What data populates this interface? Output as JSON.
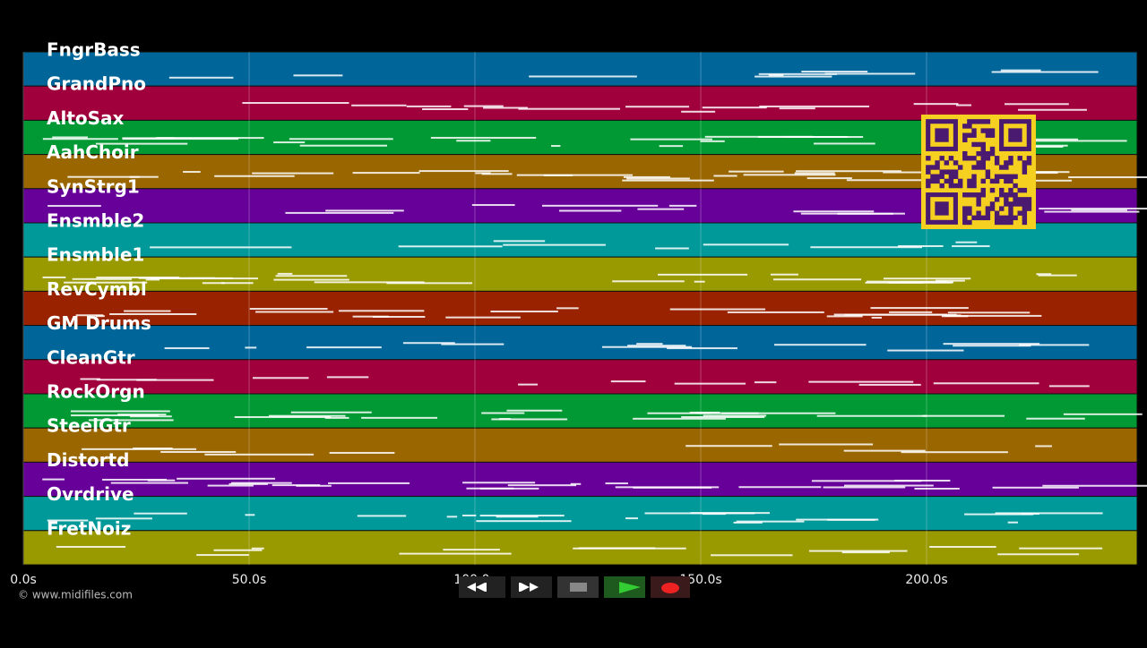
{
  "tracks": [
    {
      "name": "FngrBass",
      "color": "#006699"
    },
    {
      "name": "GrandPno",
      "color": "#a0003c"
    },
    {
      "name": "AltoSax",
      "color": "#009933"
    },
    {
      "name": "AahChoir",
      "color": "#996600"
    },
    {
      "name": "SynStrg1",
      "color": "#660099"
    },
    {
      "name": "Ensmble2",
      "color": "#009999"
    },
    {
      "name": "Ensmble1",
      "color": "#999900"
    },
    {
      "name": "RevCymbl",
      "color": "#992200"
    },
    {
      "name": "GM Drums",
      "color": "#006699"
    },
    {
      "name": "CleanGtr",
      "color": "#a0003c"
    },
    {
      "name": "RockOrgn",
      "color": "#009933"
    },
    {
      "name": "SteelGtr",
      "color": "#996600"
    },
    {
      "name": "Distortd",
      "color": "#660099"
    },
    {
      "name": "Ovrdrive",
      "color": "#009999"
    },
    {
      "name": "FretNoiz",
      "color": "#999900"
    }
  ],
  "time_axis": {
    "ticks": [
      "0.0s",
      "50.0s",
      "100.0s",
      "150.0s",
      "200.0s"
    ]
  },
  "footer": {
    "copyright": "© www.midifiles.com"
  }
}
